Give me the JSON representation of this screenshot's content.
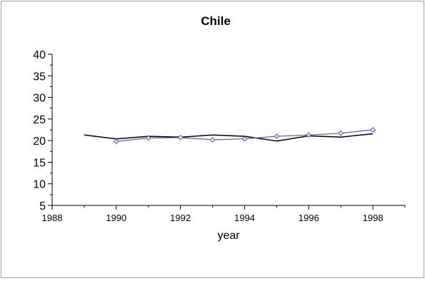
{
  "chart_data": {
    "type": "line",
    "title": "Chile",
    "xlabel": "year",
    "ylabel": "",
    "xlim": [
      1988,
      1999
    ],
    "ylim": [
      5,
      40
    ],
    "x_ticks": [
      1988,
      1990,
      1992,
      1994,
      1996,
      1998
    ],
    "y_ticks": [
      5,
      10,
      15,
      20,
      25,
      30,
      35,
      40
    ],
    "grid": false,
    "legend": "none",
    "series": [
      {
        "color": "#000000",
        "marker": "none",
        "x": [
          1989,
          1990,
          1991,
          1992,
          1993,
          1994,
          1995,
          1996,
          1997,
          1998
        ],
        "y": [
          21.3,
          20.4,
          21.0,
          20.8,
          21.3,
          21.0,
          19.9,
          21.1,
          20.8,
          21.6
        ]
      },
      {
        "color": "#5a5ab0",
        "marker": "diamond",
        "x": [
          1990,
          1991,
          1992,
          1993,
          1994,
          1995,
          1996,
          1997,
          1998
        ],
        "y": [
          19.8,
          20.6,
          20.7,
          20.2,
          20.4,
          21.0,
          21.3,
          21.7,
          22.5
        ]
      }
    ]
  }
}
